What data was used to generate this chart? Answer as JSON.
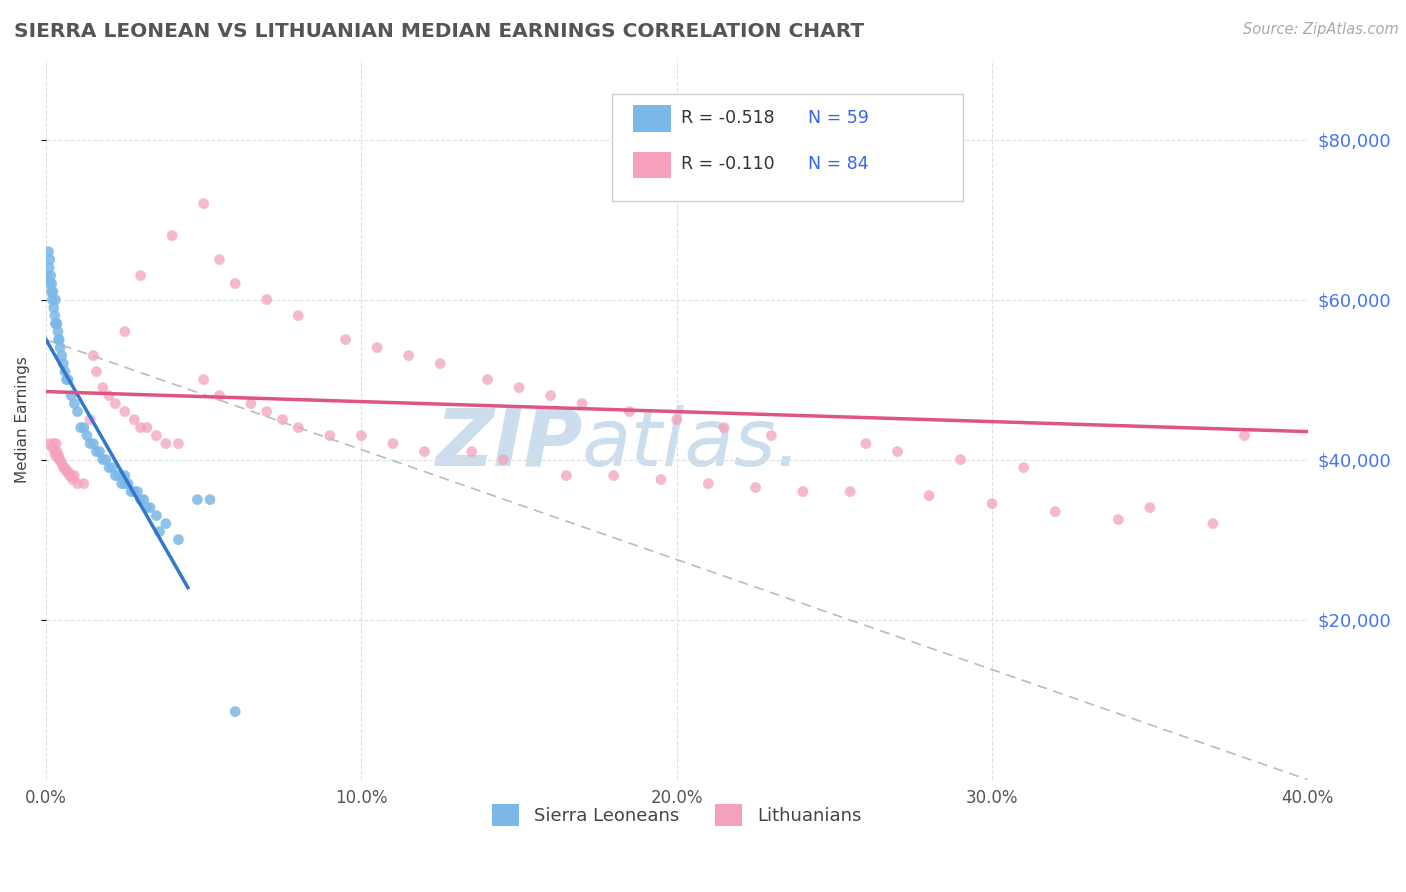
{
  "title": "SIERRA LEONEAN VS LITHUANIAN MEDIAN EARNINGS CORRELATION CHART",
  "source_text": "Source: ZipAtlas.com",
  "ylabel": "Median Earnings",
  "y_ticks": [
    20000,
    40000,
    60000,
    80000
  ],
  "y_tick_labels": [
    "$20,000",
    "$40,000",
    "$60,000",
    "$80,000"
  ],
  "xlim": [
    0.0,
    40.0
  ],
  "ylim": [
    0,
    90000
  ],
  "sierra_color": "#7bb8e8",
  "lithuanian_color": "#f4a0be",
  "sierra_trend_color": "#3377cc",
  "lithuanian_trend_color": "#e05580",
  "watermark_color": "#ccdded",
  "grid_color": "#e0e0e0",
  "sierra_trend_x0": 0.0,
  "sierra_trend_y0": 55000,
  "sierra_trend_x1": 4.5,
  "sierra_trend_y1": 24000,
  "lithuanian_trend_x0": 0.0,
  "lithuanian_trend_y0": 48500,
  "lithuanian_trend_x1": 40.0,
  "lithuanian_trend_y1": 43500,
  "ref_line_x0": 0.0,
  "ref_line_y0": 55000,
  "ref_line_x1": 40.0,
  "ref_line_y1": 0,
  "sierra_pts_x": [
    0.05,
    0.08,
    0.1,
    0.12,
    0.13,
    0.15,
    0.17,
    0.18,
    0.2,
    0.22,
    0.25,
    0.28,
    0.3,
    0.3,
    0.32,
    0.35,
    0.38,
    0.4,
    0.42,
    0.45,
    0.5,
    0.55,
    0.6,
    0.65,
    0.7,
    0.8,
    0.9,
    1.0,
    1.1,
    1.2,
    1.3,
    1.4,
    1.5,
    1.6,
    1.7,
    1.8,
    1.9,
    2.0,
    2.1,
    2.2,
    2.3,
    2.4,
    2.5,
    2.6,
    2.7,
    2.8,
    2.9,
    3.0,
    3.1,
    3.2,
    3.3,
    3.5,
    3.8,
    4.2,
    2.5,
    3.6,
    4.8,
    5.2,
    6.0
  ],
  "sierra_pts_y": [
    63000,
    66000,
    64000,
    65000,
    62000,
    63000,
    61000,
    62000,
    60000,
    61000,
    59000,
    58000,
    57000,
    60000,
    57000,
    57000,
    56000,
    55000,
    55000,
    54000,
    53000,
    52000,
    51000,
    50000,
    50000,
    48000,
    47000,
    46000,
    44000,
    44000,
    43000,
    42000,
    42000,
    41000,
    41000,
    40000,
    40000,
    39000,
    39000,
    38000,
    38000,
    37000,
    37000,
    37000,
    36000,
    36000,
    36000,
    35000,
    35000,
    34000,
    34000,
    33000,
    32000,
    30000,
    38000,
    31000,
    35000,
    35000,
    8500
  ],
  "lithuanian_pts_x": [
    0.1,
    0.2,
    0.25,
    0.28,
    0.3,
    0.32,
    0.35,
    0.4,
    0.42,
    0.45,
    0.5,
    0.55,
    0.6,
    0.65,
    0.7,
    0.75,
    0.8,
    0.85,
    0.9,
    1.0,
    1.2,
    1.4,
    1.5,
    1.6,
    1.8,
    2.0,
    2.2,
    2.5,
    2.8,
    3.0,
    3.2,
    3.5,
    3.8,
    4.2,
    5.0,
    5.5,
    6.5,
    7.0,
    7.5,
    8.0,
    9.0,
    10.0,
    11.0,
    12.0,
    13.5,
    14.5,
    16.5,
    18.0,
    19.5,
    21.0,
    22.5,
    24.0,
    25.5,
    28.0,
    30.0,
    32.0,
    34.0,
    35.0,
    37.0,
    38.0,
    2.5,
    3.0,
    4.0,
    5.0,
    5.5,
    6.0,
    7.0,
    8.0,
    9.5,
    10.5,
    11.5,
    12.5,
    14.0,
    15.0,
    16.0,
    17.0,
    18.5,
    20.0,
    21.5,
    23.0,
    26.0,
    27.0,
    29.0,
    31.0
  ],
  "lithuanian_pts_y": [
    42000,
    41500,
    42000,
    41000,
    40500,
    42000,
    41000,
    40500,
    40000,
    40000,
    39500,
    39000,
    39000,
    38500,
    38500,
    38000,
    38000,
    37500,
    38000,
    37000,
    37000,
    45000,
    53000,
    51000,
    49000,
    48000,
    47000,
    46000,
    45000,
    44000,
    44000,
    43000,
    42000,
    42000,
    50000,
    48000,
    47000,
    46000,
    45000,
    44000,
    43000,
    43000,
    42000,
    41000,
    41000,
    40000,
    38000,
    38000,
    37500,
    37000,
    36500,
    36000,
    36000,
    35500,
    34500,
    33500,
    32500,
    34000,
    32000,
    43000,
    56000,
    63000,
    68000,
    72000,
    65000,
    62000,
    60000,
    58000,
    55000,
    54000,
    53000,
    52000,
    50000,
    49000,
    48000,
    47000,
    46000,
    45000,
    44000,
    43000,
    42000,
    41000,
    40000,
    39000
  ]
}
